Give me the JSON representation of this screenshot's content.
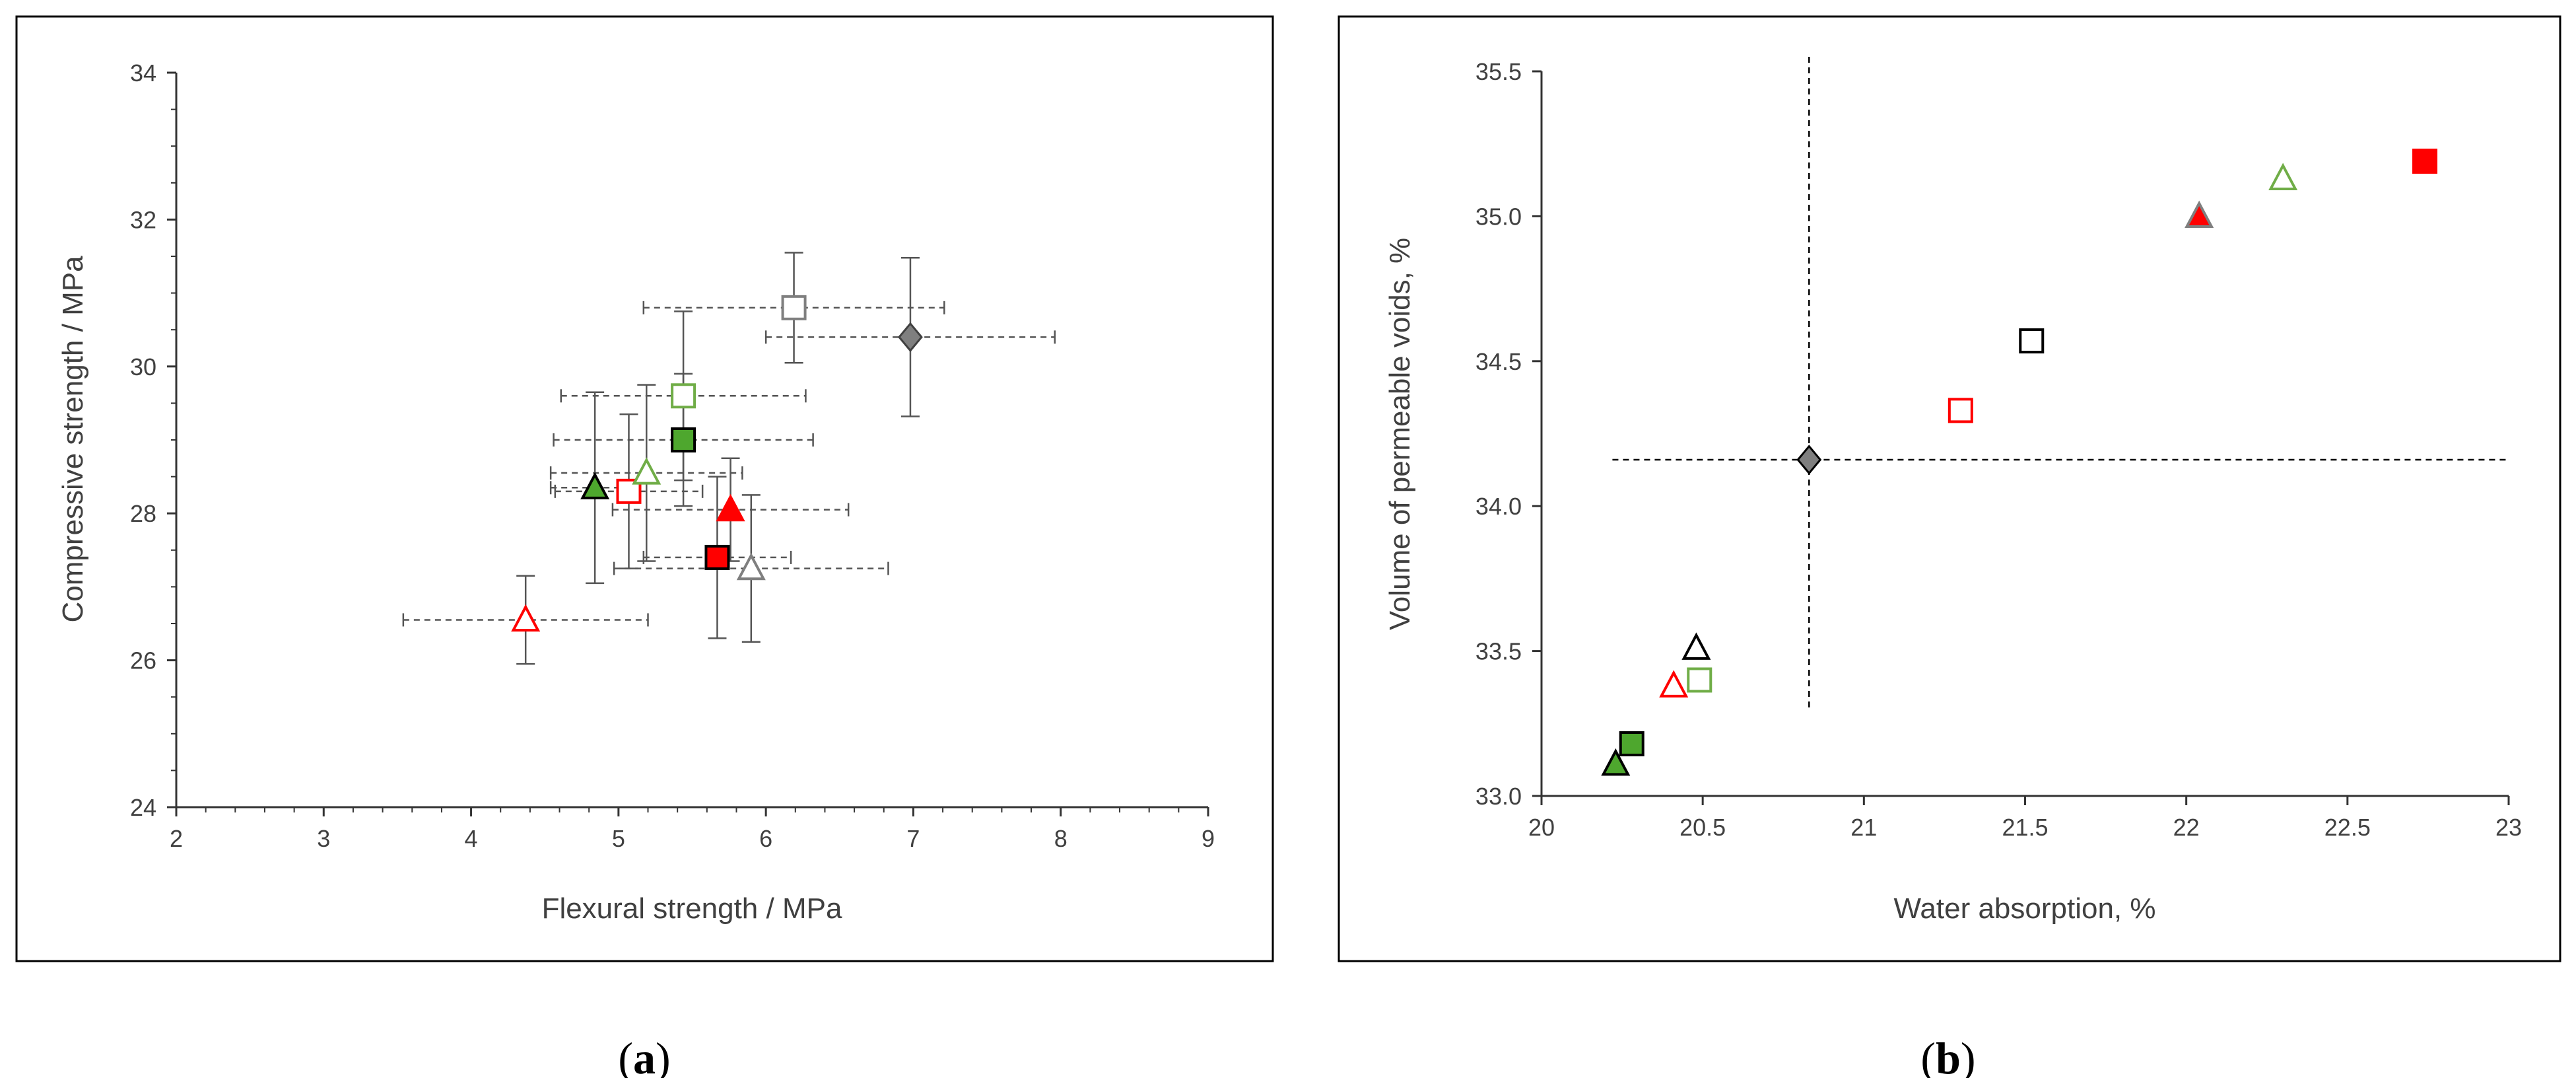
{
  "chart_data": [
    {
      "type": "scatter",
      "caption": "(a)",
      "caption_letter": "a",
      "xlabel": "Flexural strength / MPa",
      "ylabel": "Compressive strength / MPa",
      "xlim": [
        2,
        9
      ],
      "ylim": [
        24,
        34
      ],
      "xticks": [
        2,
        3,
        4,
        5,
        6,
        7,
        8,
        9
      ],
      "yticks": [
        24,
        26,
        28,
        30,
        32,
        34
      ],
      "grid": false,
      "legend": "none",
      "points": [
        {
          "marker": "triangle",
          "fill": "#ffffff",
          "stroke": "#ff0000",
          "x": 4.37,
          "y": 26.55,
          "xerr": 0.83,
          "yerr": 0.6
        },
        {
          "marker": "triangle",
          "fill": "#4ea72e",
          "stroke": "#000000",
          "x": 4.84,
          "y": 28.35,
          "xerr": 0.3,
          "yerr": 1.3
        },
        {
          "marker": "square",
          "fill": "#ffffff",
          "stroke": "#ff0000",
          "x": 5.07,
          "y": 28.3,
          "xerr": 0.5,
          "yerr": 1.05
        },
        {
          "marker": "triangle",
          "fill": "#ffffff",
          "stroke": "#70ad47",
          "x": 5.19,
          "y": 28.55,
          "xerr": 0.65,
          "yerr": 1.2
        },
        {
          "marker": "square",
          "fill": "#ffffff",
          "stroke": "#70ad47",
          "x": 5.44,
          "y": 29.6,
          "xerr": 0.83,
          "yerr": 1.15
        },
        {
          "marker": "square",
          "fill": "#4ea72e",
          "stroke": "#000000",
          "x": 5.44,
          "y": 29.0,
          "xerr": 0.88,
          "yerr": 0.9
        },
        {
          "marker": "triangle",
          "fill": "#ff0000",
          "stroke": "#ff0000",
          "x": 5.76,
          "y": 28.05,
          "xerr": 0.8,
          "yerr": 0.7
        },
        {
          "marker": "square",
          "fill": "#ff0000",
          "stroke": "#000000",
          "x": 5.67,
          "y": 27.4,
          "xerr": 0.5,
          "yerr": 1.1
        },
        {
          "marker": "triangle",
          "fill": "#ffffff",
          "stroke": "#7f7f7f",
          "x": 5.9,
          "y": 27.25,
          "xerr": 0.93,
          "yerr": 1.0
        },
        {
          "marker": "square",
          "fill": "#ffffff",
          "stroke": "#7f7f7f",
          "x": 6.19,
          "y": 30.8,
          "xerr": 1.02,
          "yerr": 0.75
        },
        {
          "marker": "diamond",
          "fill": "#7f7f7f",
          "stroke": "#404040",
          "x": 6.98,
          "y": 30.4,
          "xerr": 0.98,
          "yerr": 1.08
        }
      ]
    },
    {
      "type": "scatter",
      "caption": "(b)",
      "caption_letter": "b",
      "xlabel": "Water absorption, %",
      "ylabel": "Volume of permeable voids, %",
      "xlim": [
        20,
        23
      ],
      "ylim": [
        33.0,
        35.5
      ],
      "xticks": [
        "20",
        "20.5",
        "21",
        "21.5",
        "22",
        "22.5",
        "23"
      ],
      "yticks": [
        "33.0",
        "33.5",
        "34.0",
        "34.5",
        "35.0",
        "35.5"
      ],
      "grid": false,
      "legend": "none",
      "reference_point": {
        "x": 20.83,
        "y": 34.16,
        "x_range": [
          20.22,
          23.0
        ],
        "y_range": [
          33.3,
          35.55
        ]
      },
      "points": [
        {
          "marker": "triangle",
          "fill": "#4ea72e",
          "stroke": "#000000",
          "x": 20.23,
          "y": 33.11
        },
        {
          "marker": "square",
          "fill": "#4ea72e",
          "stroke": "#000000",
          "x": 20.28,
          "y": 33.18
        },
        {
          "marker": "triangle",
          "fill": "#ffffff",
          "stroke": "#ff0000",
          "x": 20.41,
          "y": 33.38
        },
        {
          "marker": "square",
          "fill": "#ffffff",
          "stroke": "#70ad47",
          "x": 20.49,
          "y": 33.4
        },
        {
          "marker": "triangle",
          "fill": "#ffffff",
          "stroke": "#000000",
          "x": 20.48,
          "y": 33.51
        },
        {
          "marker": "diamond",
          "fill": "#7f7f7f",
          "stroke": "#000000",
          "x": 20.83,
          "y": 34.16
        },
        {
          "marker": "square",
          "fill": "#ffffff",
          "stroke": "#ff0000",
          "x": 21.3,
          "y": 34.33
        },
        {
          "marker": "square",
          "fill": "#ffffff",
          "stroke": "#000000",
          "x": 21.52,
          "y": 34.57
        },
        {
          "marker": "triangle",
          "fill": "#ff0000",
          "stroke": "#7f7f7f",
          "x": 22.04,
          "y": 35.0
        },
        {
          "marker": "triangle",
          "fill": "#ffffff",
          "stroke": "#70ad47",
          "x": 22.3,
          "y": 35.13
        },
        {
          "marker": "square",
          "fill": "#ff0000",
          "stroke": "#ff0000",
          "x": 22.74,
          "y": 35.19
        }
      ]
    }
  ]
}
